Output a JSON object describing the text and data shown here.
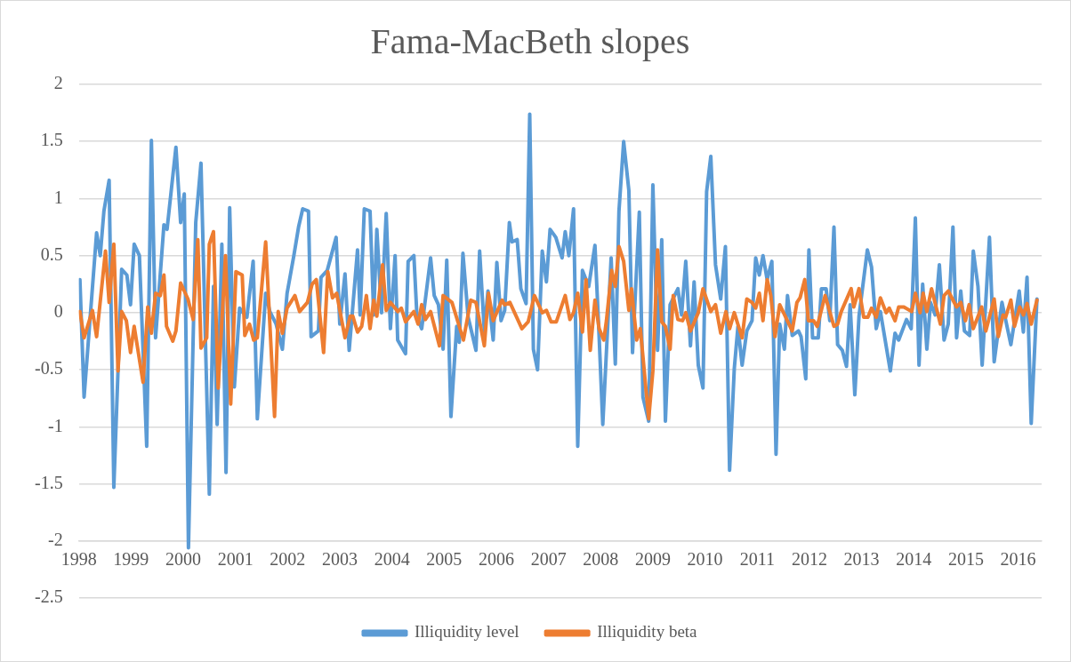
{
  "chart_data": {
    "type": "line",
    "title": "Fama-MacBeth slopes",
    "xlim": [
      1998,
      2016.45
    ],
    "xticks": [
      1998,
      1999,
      2000,
      2001,
      2002,
      2003,
      2004,
      2005,
      2006,
      2007,
      2008,
      2009,
      2010,
      2011,
      2012,
      2013,
      2014,
      2015,
      2016
    ],
    "ylim": [
      -2.5,
      2
    ],
    "yticks": [
      -2.5,
      -2,
      -1.5,
      -1,
      -0.5,
      0,
      0.5,
      1,
      1.5,
      2
    ],
    "grid": "y",
    "legend": "bottom",
    "line_style": "solid",
    "series": [
      {
        "name": "Illiquidity level",
        "color": "#5b9bd5",
        "x": [
          1998.02,
          1998.1,
          1998.34,
          1998.41,
          1998.48,
          1998.58,
          1998.67,
          1998.82,
          1998.92,
          1998.99,
          1999.06,
          1999.16,
          1999.3,
          1999.39,
          1999.47,
          1999.63,
          1999.69,
          1999.86,
          1999.95,
          2000.02,
          2000.1,
          2000.24,
          2000.34,
          2000.5,
          2000.58,
          2000.65,
          2000.74,
          2000.82,
          2000.89,
          2000.98,
          2001.08,
          2001.22,
          2001.34,
          2001.42,
          2001.58,
          2001.66,
          2001.78,
          2001.9,
          2001.99,
          2002.12,
          2002.21,
          2002.29,
          2002.4,
          2002.45,
          2002.59,
          2002.64,
          2002.76,
          2002.93,
          2003.0,
          2003.1,
          2003.18,
          2003.34,
          2003.39,
          2003.47,
          2003.58,
          2003.65,
          2003.71,
          2003.8,
          2003.89,
          2003.97,
          2004.06,
          2004.11,
          2004.26,
          2004.31,
          2004.42,
          2004.48,
          2004.57,
          2004.74,
          2004.81,
          2004.89,
          2004.98,
          2005.05,
          2005.13,
          2005.24,
          2005.29,
          2005.36,
          2005.46,
          2005.61,
          2005.68,
          2005.77,
          2005.84,
          2005.94,
          2006.01,
          2006.09,
          2006.16,
          2006.25,
          2006.3,
          2006.4,
          2006.47,
          2006.57,
          2006.64,
          2006.71,
          2006.79,
          2006.88,
          2006.96,
          2007.03,
          2007.14,
          2007.26,
          2007.32,
          2007.39,
          2007.48,
          2007.56,
          2007.65,
          2007.77,
          2007.89,
          2007.97,
          2008.04,
          2008.2,
          2008.28,
          2008.35,
          2008.44,
          2008.54,
          2008.61,
          2008.74,
          2008.81,
          2008.92,
          2009.0,
          2009.09,
          2009.17,
          2009.24,
          2009.33,
          2009.48,
          2009.55,
          2009.63,
          2009.72,
          2009.79,
          2009.87,
          2009.96,
          2010.03,
          2010.11,
          2010.2,
          2010.3,
          2010.39,
          2010.47,
          2010.56,
          2010.63,
          2010.71,
          2010.8,
          2010.9,
          2010.97,
          2011.04,
          2011.11,
          2011.19,
          2011.28,
          2011.36,
          2011.43,
          2011.52,
          2011.58,
          2011.67,
          2011.79,
          2011.84,
          2011.93,
          2011.99,
          2012.06,
          2012.17,
          2012.23,
          2012.32,
          2012.39,
          2012.47,
          2012.54,
          2012.63,
          2012.71,
          2012.78,
          2012.87,
          2012.95,
          2013.11,
          2013.19,
          2013.28,
          2013.36,
          2013.55,
          2013.64,
          2013.71,
          2013.86,
          2013.95,
          2014.03,
          2014.1,
          2014.17,
          2014.25,
          2014.32,
          2014.41,
          2014.49,
          2014.58,
          2014.66,
          2014.75,
          2014.82,
          2014.9,
          2014.97,
          2015.07,
          2015.14,
          2015.23,
          2015.31,
          2015.45,
          2015.54,
          2015.69,
          2015.86,
          2016.02,
          2016.1,
          2016.17,
          2016.25,
          2016.36
        ],
        "values": [
          0.29,
          -0.74,
          0.7,
          0.5,
          0.89,
          1.16,
          -1.53,
          0.38,
          0.33,
          0.07,
          0.6,
          0.5,
          -1.17,
          1.51,
          -0.22,
          0.77,
          0.73,
          1.45,
          0.79,
          1.04,
          -2.06,
          0.79,
          1.31,
          -1.59,
          0.23,
          -0.98,
          0.6,
          -1.4,
          0.92,
          -0.65,
          0.04,
          -0.04,
          0.45,
          -0.93,
          0.17,
          0.01,
          -0.1,
          -0.32,
          0.17,
          0.5,
          0.75,
          0.91,
          0.89,
          -0.21,
          -0.16,
          0.31,
          0.37,
          0.66,
          -0.1,
          0.34,
          -0.33,
          0.55,
          -0.02,
          0.91,
          0.89,
          -0.02,
          0.73,
          0.0,
          0.87,
          -0.14,
          0.5,
          -0.24,
          -0.36,
          0.45,
          0.5,
          -0.04,
          -0.14,
          0.48,
          0.15,
          0.07,
          -0.32,
          0.46,
          -0.91,
          -0.12,
          -0.26,
          0.52,
          -0.04,
          -0.33,
          0.54,
          -0.16,
          0.19,
          -0.24,
          0.44,
          -0.07,
          0.02,
          0.79,
          0.62,
          0.64,
          0.21,
          0.08,
          1.74,
          -0.32,
          -0.5,
          0.54,
          0.27,
          0.73,
          0.66,
          0.48,
          0.71,
          0.5,
          0.91,
          -1.17,
          0.37,
          0.23,
          0.59,
          -0.21,
          -0.98,
          0.48,
          -0.45,
          0.89,
          1.5,
          1.07,
          -0.35,
          0.88,
          -0.74,
          -0.95,
          1.12,
          -0.33,
          0.64,
          -0.95,
          0.07,
          0.21,
          -0.02,
          0.45,
          -0.29,
          0.27,
          -0.46,
          -0.66,
          1.06,
          1.37,
          0.42,
          0.12,
          0.58,
          -1.38,
          -0.49,
          -0.12,
          -0.46,
          -0.16,
          -0.07,
          0.48,
          0.33,
          0.5,
          0.29,
          0.45,
          -1.24,
          -0.1,
          -0.32,
          0.15,
          -0.2,
          -0.16,
          -0.21,
          -0.58,
          0.55,
          -0.22,
          -0.22,
          0.21,
          0.21,
          -0.07,
          0.75,
          -0.28,
          -0.33,
          -0.47,
          0.07,
          -0.72,
          -0.03,
          0.55,
          0.4,
          -0.14,
          0.01,
          -0.51,
          -0.18,
          -0.24,
          -0.06,
          -0.14,
          0.83,
          -0.46,
          0.25,
          -0.32,
          0.09,
          -0.02,
          0.42,
          -0.24,
          -0.1,
          0.75,
          -0.22,
          0.19,
          -0.16,
          -0.2,
          0.54,
          0.23,
          -0.46,
          0.66,
          -0.43,
          0.09,
          -0.28,
          0.19,
          -0.17,
          0.31,
          -0.97,
          0.12
        ]
      },
      {
        "name": "Illiquidity beta",
        "color": "#ed7d31",
        "x": [
          1998.02,
          1998.1,
          1998.26,
          1998.34,
          1998.51,
          1998.58,
          1998.67,
          1998.75,
          1998.82,
          1998.91,
          1998.99,
          1999.06,
          1999.23,
          1999.32,
          1999.39,
          1999.47,
          1999.56,
          1999.63,
          1999.68,
          1999.8,
          1999.86,
          1999.95,
          2000.09,
          2000.19,
          2000.28,
          2000.34,
          2000.45,
          2000.5,
          2000.58,
          2000.67,
          2000.81,
          2000.91,
          2001.01,
          2001.13,
          2001.18,
          2001.27,
          2001.35,
          2001.42,
          2001.58,
          2001.75,
          2001.82,
          2001.9,
          2001.99,
          2002.14,
          2002.23,
          2002.38,
          2002.47,
          2002.55,
          2002.69,
          2002.77,
          2002.86,
          2002.94,
          2003.1,
          2003.2,
          2003.25,
          2003.34,
          2003.42,
          2003.51,
          2003.58,
          2003.65,
          2003.71,
          2003.82,
          2003.89,
          2003.97,
          2004.11,
          2004.18,
          2004.26,
          2004.42,
          2004.5,
          2004.57,
          2004.64,
          2004.74,
          2004.91,
          2004.98,
          2005.15,
          2005.37,
          2005.51,
          2005.61,
          2005.77,
          2005.85,
          2005.94,
          2006.11,
          2006.16,
          2006.26,
          2006.49,
          2006.61,
          2006.73,
          2006.88,
          2006.96,
          2007.05,
          2007.15,
          2007.32,
          2007.41,
          2007.48,
          2007.56,
          2007.65,
          2007.72,
          2007.8,
          2007.89,
          2007.97,
          2008.06,
          2008.11,
          2008.21,
          2008.28,
          2008.35,
          2008.44,
          2008.54,
          2008.59,
          2008.69,
          2008.76,
          2008.92,
          2009.0,
          2009.09,
          2009.17,
          2009.24,
          2009.33,
          2009.39,
          2009.48,
          2009.57,
          2009.63,
          2009.72,
          2009.87,
          2009.96,
          2010.11,
          2010.2,
          2010.3,
          2010.4,
          2010.47,
          2010.56,
          2010.71,
          2010.8,
          2010.9,
          2010.97,
          2011.04,
          2011.11,
          2011.19,
          2011.26,
          2011.34,
          2011.43,
          2011.67,
          2011.76,
          2011.82,
          2011.91,
          2011.98,
          2012.08,
          2012.15,
          2012.3,
          2012.47,
          2012.54,
          2012.61,
          2012.8,
          2012.85,
          2012.95,
          2013.04,
          2013.12,
          2013.19,
          2013.28,
          2013.36,
          2013.47,
          2013.53,
          2013.64,
          2013.71,
          2013.81,
          2013.96,
          2014.03,
          2014.12,
          2014.18,
          2014.25,
          2014.34,
          2014.51,
          2014.58,
          2014.66,
          2014.82,
          2014.9,
          2014.99,
          2015.06,
          2015.14,
          2015.3,
          2015.38,
          2015.54,
          2015.62,
          2015.71,
          2015.76,
          2015.86,
          2015.93,
          2016.03,
          2016.1,
          2016.17,
          2016.25,
          2016.36
        ],
        "values": [
          0.01,
          -0.22,
          0.02,
          -0.21,
          0.54,
          0.09,
          0.6,
          -0.51,
          0.01,
          -0.07,
          -0.35,
          -0.12,
          -0.61,
          0.05,
          -0.18,
          0.17,
          0.15,
          0.33,
          -0.12,
          -0.25,
          -0.16,
          0.26,
          0.12,
          -0.06,
          0.64,
          -0.31,
          -0.22,
          0.6,
          0.71,
          -0.66,
          0.5,
          -0.8,
          0.36,
          0.33,
          -0.2,
          -0.1,
          -0.24,
          -0.22,
          0.62,
          -0.91,
          0.01,
          -0.18,
          0.04,
          0.15,
          0.01,
          0.09,
          0.25,
          0.29,
          -0.35,
          0.36,
          0.13,
          0.17,
          -0.22,
          -0.03,
          -0.03,
          -0.17,
          -0.12,
          0.15,
          -0.14,
          0.11,
          -0.03,
          0.42,
          0.02,
          0.09,
          0.01,
          0.04,
          -0.08,
          0.01,
          -0.1,
          0.07,
          -0.06,
          0.01,
          -0.29,
          0.15,
          0.09,
          -0.24,
          0.11,
          0.09,
          -0.29,
          0.17,
          -0.07,
          0.11,
          0.07,
          0.09,
          -0.14,
          -0.08,
          0.15,
          0.0,
          0.02,
          -0.08,
          -0.08,
          0.15,
          -0.06,
          0.0,
          0.17,
          -0.17,
          0.29,
          -0.33,
          0.11,
          -0.14,
          -0.24,
          -0.07,
          0.37,
          0.23,
          0.58,
          0.45,
          0.02,
          0.21,
          -0.24,
          -0.14,
          -0.93,
          -0.51,
          0.55,
          -0.08,
          -0.12,
          -0.32,
          0.15,
          -0.06,
          -0.07,
          0.0,
          -0.16,
          0.0,
          0.21,
          0.01,
          0.07,
          -0.18,
          0.01,
          -0.14,
          0.0,
          -0.22,
          0.12,
          0.09,
          0.04,
          0.17,
          -0.07,
          0.29,
          0.15,
          -0.21,
          0.07,
          -0.16,
          0.09,
          0.13,
          0.29,
          -0.07,
          -0.07,
          -0.12,
          0.15,
          -0.12,
          -0.1,
          0.01,
          0.21,
          0.05,
          0.21,
          -0.04,
          -0.04,
          0.04,
          -0.04,
          0.13,
          0.0,
          0.04,
          -0.07,
          0.05,
          0.05,
          0.01,
          0.17,
          0.0,
          0.17,
          0.01,
          0.21,
          -0.1,
          0.15,
          0.19,
          0.05,
          0.09,
          -0.07,
          0.07,
          -0.14,
          0.05,
          -0.16,
          0.12,
          -0.21,
          -0.02,
          -0.04,
          0.11,
          -0.12,
          0.05,
          -0.02,
          0.08,
          -0.1,
          0.11
        ]
      }
    ]
  }
}
